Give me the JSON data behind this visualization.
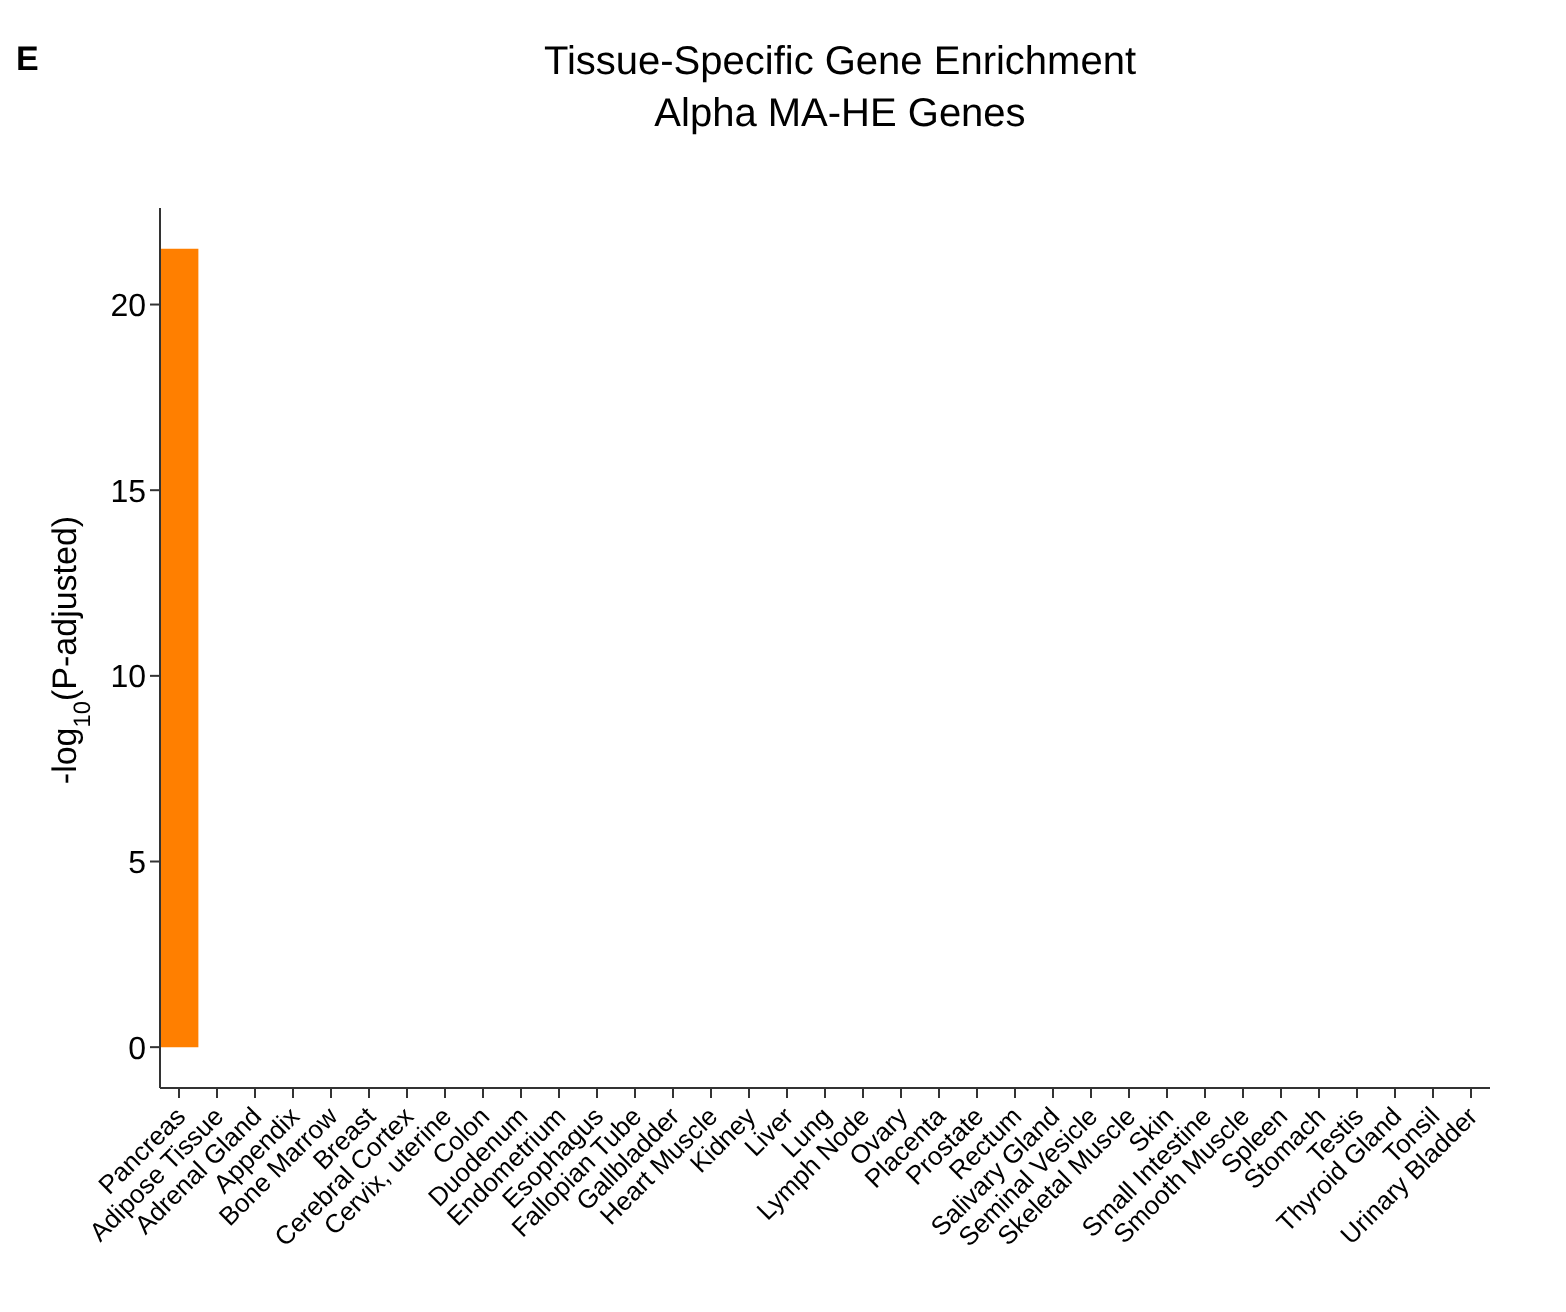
{
  "chart_data": {
    "type": "bar",
    "title": "Tissue-Specific Gene Enrichment",
    "subtitle": "Alpha MA-HE Genes",
    "ylabel": "-log$_{10}$(P-adjusted)",
    "annotations": [
      "E"
    ],
    "categories": [
      "Pancreas",
      "Adipose Tissue",
      "Adrenal Gland",
      "Appendix",
      "Bone Marrow",
      "Breast",
      "Cerebral Cortex",
      "Cervix, uterine",
      "Colon",
      "Duodenum",
      "Endometrium",
      "Esophagus",
      "Fallopian Tube",
      "Gallbladder",
      "Heart Muscle",
      "Kidney",
      "Liver",
      "Lung",
      "Lymph Node",
      "Ovary",
      "Placenta",
      "Prostate",
      "Rectum",
      "Salivary Gland",
      "Seminal Vesicle",
      "Skeletal Muscle",
      "Skin",
      "Small Intestine",
      "Smooth Muscle",
      "Spleen",
      "Stomach",
      "Testis",
      "Thyroid Gland",
      "Tonsil",
      "Urinary Bladder"
    ],
    "values": [
      21.5,
      0,
      0,
      0,
      0,
      0,
      0,
      0,
      0,
      0,
      0,
      0,
      0,
      0,
      0,
      0,
      0,
      0,
      0,
      0,
      0,
      0,
      0,
      0,
      0,
      0,
      0,
      0,
      0,
      0,
      0,
      0,
      0,
      0,
      0
    ],
    "color": "#ff7f00",
    "ylim": [
      -1.1,
      22.6
    ],
    "yticks": [
      0,
      5,
      10,
      15,
      20
    ]
  }
}
